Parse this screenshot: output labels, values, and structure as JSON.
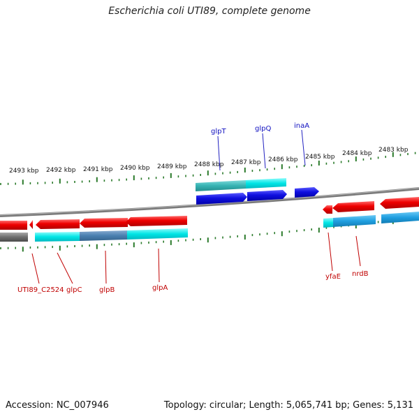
{
  "title": "Escherichia coli UTI89, complete genome",
  "footer": {
    "accession": "Accession: NC_007946",
    "stats": "Topology: circular; Length: 5,065,741 bp; Genes: 5,131"
  },
  "colors": {
    "forward_gene": "#1010e0",
    "reverse_gene": "#e00000",
    "forward_label": "#1010c0",
    "reverse_label": "#c00000",
    "cds_cyan": "#00e5e5",
    "cds_teal": "#35b3b3",
    "cds_steel": "#4a7fb0",
    "cds_blue": "#1f9fe0",
    "genome_line": "#777777",
    "tick": "#2a7a2a"
  },
  "scale_labels": [
    "2493 kbp",
    "2492 kbp",
    "2491 kbp",
    "2490 kbp",
    "2489 kbp",
    "2488 kbp",
    "2487 kbp",
    "2486 kbp",
    "2485 kbp",
    "2484 kbp",
    "2483 kbp"
  ],
  "forward_gene_labels": [
    "glpT",
    "glpQ",
    "inaA"
  ],
  "reverse_gene_labels": [
    "UTI89_C2524",
    "glpC",
    "glpB",
    "glpA",
    "yfaE",
    "nrdB"
  ]
}
